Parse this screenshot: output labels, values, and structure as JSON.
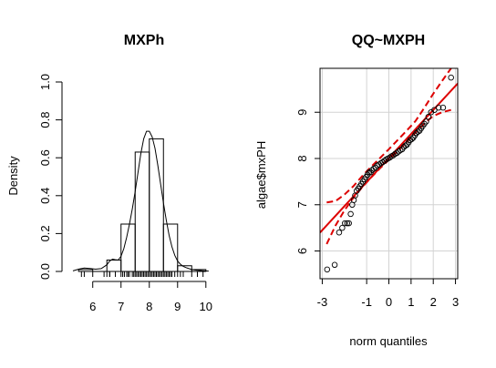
{
  "chart_data": [
    {
      "type": "bar",
      "subtype": "histogram-with-density",
      "title": "MXPh",
      "xlabel": "",
      "ylabel": "Density",
      "xlim": [
        5.3,
        10.2
      ],
      "ylim": [
        0,
        1.0
      ],
      "x_ticks": [
        "6",
        "7",
        "8",
        "9",
        "10"
      ],
      "x_tick_values": [
        6,
        7,
        8,
        9,
        10
      ],
      "y_ticks": [
        "0.0",
        "0.2",
        "0.4",
        "0.6",
        "0.8",
        "1.0"
      ],
      "y_tick_values": [
        0,
        0.2,
        0.4,
        0.6,
        0.8,
        1.0
      ],
      "bins": [
        {
          "x0": 5.5,
          "x1": 6.0,
          "density": 0.01
        },
        {
          "x0": 6.0,
          "x1": 6.5,
          "density": 0.0
        },
        {
          "x0": 6.5,
          "x1": 7.0,
          "density": 0.06
        },
        {
          "x0": 7.0,
          "x1": 7.5,
          "density": 0.25
        },
        {
          "x0": 7.5,
          "x1": 8.0,
          "density": 0.63
        },
        {
          "x0": 8.0,
          "x1": 8.5,
          "density": 0.7
        },
        {
          "x0": 8.5,
          "x1": 9.0,
          "density": 0.25
        },
        {
          "x0": 9.0,
          "x1": 9.5,
          "density": 0.03
        },
        {
          "x0": 9.5,
          "x1": 10.0,
          "density": 0.01
        }
      ],
      "density_curve": {
        "x": [
          5.3,
          5.5,
          5.7,
          5.9,
          6.1,
          6.3,
          6.5,
          6.6,
          6.7,
          6.8,
          6.9,
          7.0,
          7.1,
          7.2,
          7.3,
          7.4,
          7.5,
          7.6,
          7.7,
          7.8,
          7.9,
          8.0,
          8.1,
          8.2,
          8.3,
          8.4,
          8.5,
          8.6,
          8.7,
          8.8,
          8.9,
          9.0,
          9.1,
          9.2,
          9.3,
          9.4,
          9.5,
          9.7,
          9.9,
          10.1
        ],
        "y": [
          0.003,
          0.012,
          0.018,
          0.016,
          0.012,
          0.015,
          0.035,
          0.055,
          0.065,
          0.062,
          0.06,
          0.08,
          0.12,
          0.18,
          0.25,
          0.33,
          0.42,
          0.52,
          0.62,
          0.7,
          0.74,
          0.74,
          0.71,
          0.65,
          0.56,
          0.46,
          0.36,
          0.27,
          0.19,
          0.13,
          0.085,
          0.055,
          0.038,
          0.027,
          0.02,
          0.015,
          0.01,
          0.006,
          0.004,
          0.002
        ]
      },
      "rug": [
        5.6,
        5.7,
        6.0,
        6.4,
        6.5,
        6.6,
        6.6,
        6.8,
        7.0,
        7.06,
        7.12,
        7.2,
        7.25,
        7.3,
        7.4,
        7.45,
        7.5,
        7.55,
        7.6,
        7.65,
        7.7,
        7.75,
        7.8,
        7.85,
        7.9,
        7.95,
        8.0,
        8.05,
        8.1,
        8.15,
        8.2,
        8.25,
        8.3,
        8.35,
        8.4,
        8.45,
        8.5,
        8.55,
        8.6,
        8.65,
        8.7,
        8.75,
        8.8,
        8.9,
        9.0,
        9.1,
        9.2,
        9.5,
        9.7,
        9.9
      ]
    },
    {
      "type": "scatter",
      "subtype": "qq-plot",
      "title": "QQ~MXPH",
      "xlabel": "norm quantiles",
      "ylabel": "algae$mxPH",
      "xlim": [
        -3.1,
        3.1
      ],
      "ylim": [
        5.4,
        9.95
      ],
      "grid": true,
      "x_ticks": [
        "-3",
        "-1",
        "0",
        "1",
        "2",
        "3"
      ],
      "x_tick_values": [
        -3,
        -1,
        0,
        1,
        2,
        3
      ],
      "y_ticks": [
        "6",
        "7",
        "8",
        "9"
      ],
      "y_tick_values": [
        6,
        7,
        8,
        9
      ],
      "colors": {
        "reference": "#dd0000",
        "points": "#000000",
        "grid": "#d3d3d3"
      },
      "reference_line": {
        "intercept": 8.01,
        "slope": 0.52
      },
      "envelope": {
        "x": [
          -2.8,
          -2.4,
          -2.0,
          -1.6,
          -1.2,
          -0.8,
          -0.4,
          0.0,
          0.4,
          0.8,
          1.2,
          1.6,
          2.0,
          2.4,
          2.8
        ],
        "lower": [
          6.15,
          6.55,
          6.88,
          7.15,
          7.38,
          7.59,
          7.79,
          7.97,
          8.16,
          8.36,
          8.56,
          8.76,
          8.92,
          9.0,
          9.05
        ],
        "upper": [
          7.05,
          7.08,
          7.22,
          7.4,
          7.62,
          7.82,
          8.01,
          8.2,
          8.4,
          8.6,
          8.81,
          9.1,
          9.4,
          9.68,
          9.95
        ]
      },
      "points": {
        "x": [
          -2.78,
          -2.44,
          -2.24,
          -2.1,
          -1.98,
          -1.88,
          -1.8,
          -1.72,
          -1.65,
          -1.58,
          -1.52,
          -1.45,
          -1.38,
          -1.31,
          -1.24,
          -1.17,
          -1.1,
          -1.03,
          -0.96,
          -0.89,
          -0.82,
          -0.75,
          -0.68,
          -0.6,
          -0.52,
          -0.44,
          -0.36,
          -0.28,
          -0.2,
          -0.12,
          -0.04,
          0.04,
          0.12,
          0.2,
          0.28,
          0.36,
          0.44,
          0.52,
          0.6,
          0.68,
          0.75,
          0.82,
          0.89,
          0.96,
          1.03,
          1.1,
          1.17,
          1.24,
          1.31,
          1.38,
          1.45,
          1.52,
          1.6,
          1.68,
          1.78,
          1.9,
          2.05,
          2.24,
          2.44,
          2.8
        ],
        "y": [
          5.6,
          5.7,
          6.4,
          6.5,
          6.6,
          6.6,
          6.6,
          6.8,
          7.0,
          7.1,
          7.2,
          7.3,
          7.35,
          7.4,
          7.45,
          7.5,
          7.55,
          7.6,
          7.65,
          7.7,
          7.7,
          7.75,
          7.78,
          7.8,
          7.85,
          7.87,
          7.9,
          7.92,
          7.95,
          7.98,
          8.0,
          8.02,
          8.05,
          8.07,
          8.1,
          8.12,
          8.15,
          8.18,
          8.2,
          8.25,
          8.28,
          8.3,
          8.35,
          8.4,
          8.42,
          8.45,
          8.5,
          8.55,
          8.58,
          8.6,
          8.65,
          8.7,
          8.75,
          8.8,
          8.9,
          9.0,
          9.05,
          9.1,
          9.1,
          9.75
        ]
      }
    }
  ]
}
